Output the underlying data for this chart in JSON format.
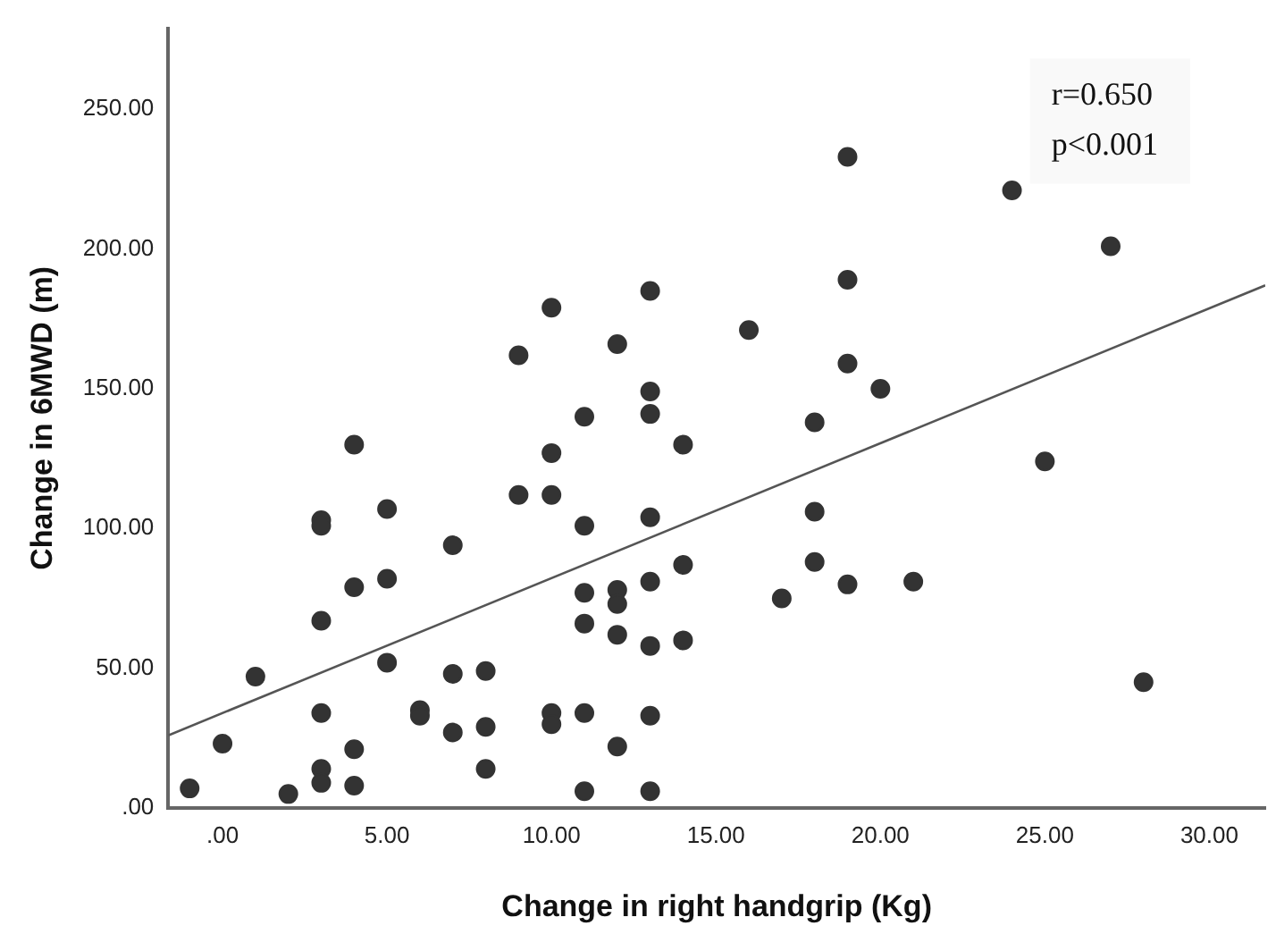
{
  "chart_data": {
    "type": "scatter",
    "xlabel": "Change in right handgrip (Kg)",
    "ylabel": "Change in 6MWD (m)",
    "xlim": [
      -1.65,
      31.7
    ],
    "ylim": [
      0,
      279
    ],
    "xticks": [
      {
        "value": 0,
        "label": ".00"
      },
      {
        "value": 5,
        "label": "5.00"
      },
      {
        "value": 10,
        "label": "10.00"
      },
      {
        "value": 15,
        "label": "15.00"
      },
      {
        "value": 20,
        "label": "20.00"
      },
      {
        "value": 25,
        "label": "25.00"
      },
      {
        "value": 30,
        "label": "30.00"
      }
    ],
    "yticks": [
      {
        "value": 0,
        "label": ".00"
      },
      {
        "value": 50,
        "label": "50.00"
      },
      {
        "value": 100,
        "label": "100.00"
      },
      {
        "value": 150,
        "label": "150.00"
      },
      {
        "value": 200,
        "label": "200.00"
      },
      {
        "value": 250,
        "label": "250.00"
      }
    ],
    "grid": false,
    "legend": false,
    "marker": "circle",
    "annotations": [
      "r=0.650",
      "p<0.001"
    ],
    "series": [
      {
        "color": "#333333",
        "x": [
          -1,
          0,
          1,
          2,
          3,
          3,
          3,
          3,
          3,
          3,
          4,
          4,
          4,
          4,
          5,
          5,
          5,
          6,
          6,
          7,
          7,
          7,
          8,
          8,
          8,
          9,
          9,
          10,
          10,
          10,
          10,
          10,
          11,
          11,
          11,
          11,
          11,
          11,
          12,
          12,
          12,
          12,
          12,
          13,
          13,
          13,
          13,
          13,
          13,
          13,
          13,
          14,
          14,
          14,
          16,
          17,
          18,
          18,
          18,
          19,
          19,
          19,
          19,
          20,
          21,
          24,
          25,
          27,
          28
        ],
        "values": [
          7,
          23,
          47,
          5,
          103,
          101,
          67,
          34,
          14,
          9,
          130,
          79,
          21,
          8,
          107,
          82,
          52,
          35,
          33,
          94,
          48,
          27,
          49,
          29,
          14,
          162,
          112,
          179,
          127,
          112,
          34,
          30,
          140,
          101,
          77,
          66,
          34,
          6,
          166,
          78,
          73,
          62,
          22,
          185,
          149,
          141,
          104,
          81,
          58,
          33,
          6,
          130,
          87,
          60,
          171,
          75,
          138,
          106,
          88,
          233,
          189,
          159,
          80,
          150,
          81,
          221,
          124,
          201,
          45
        ]
      },
      {
        "type": "line",
        "color": "#555555",
        "line_style": "solid",
        "marker": "none",
        "x": [
          -1.65,
          31.7
        ],
        "values": [
          26,
          187
        ]
      }
    ]
  }
}
